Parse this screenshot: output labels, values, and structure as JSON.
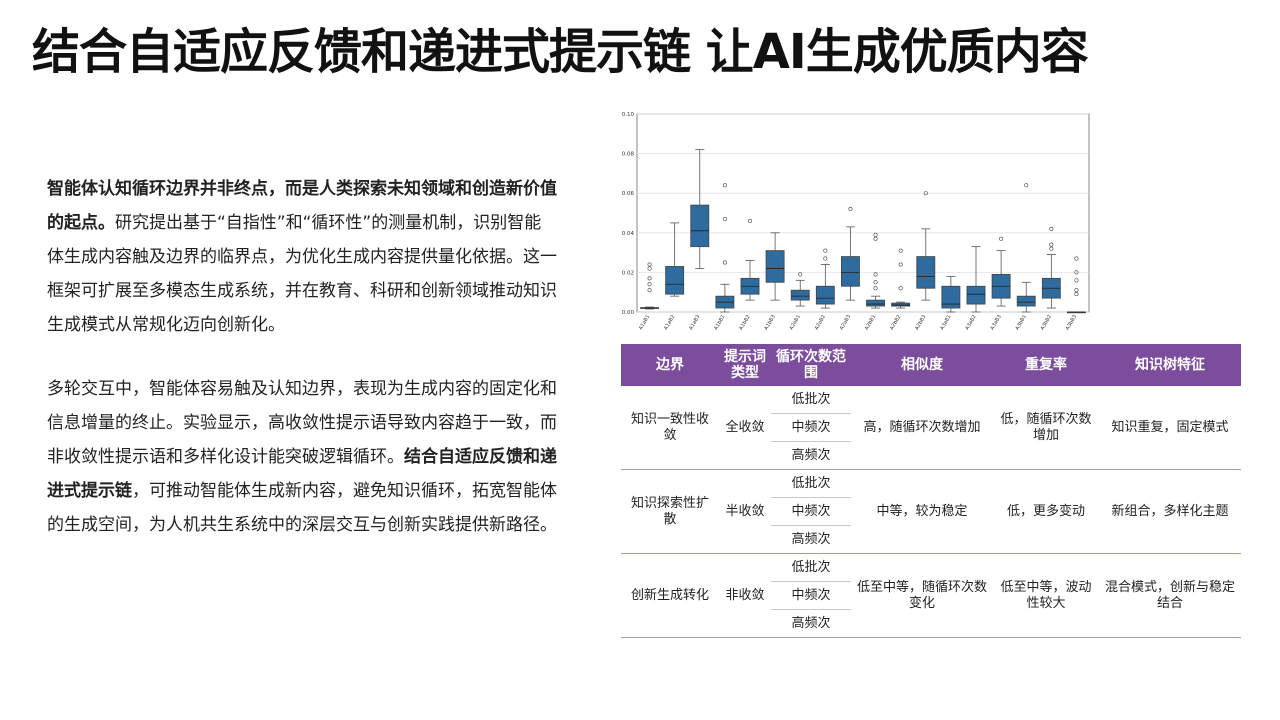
{
  "title": "结合自适应反馈和递进式提示链 让AI生成优质内容",
  "para1": {
    "bold": "智能体认知循环边界并非终点，而是人类探索未知领域和创造新价值的起点。",
    "rest": "研究提出基于“自指性”和“循环性”的测量机制，识别智能体生成内容触及边界的临界点，为优化生成内容提供量化依据。这一框架可扩展至多模态生成系统，并在教育、科研和创新领域推动知识生成模式从常规化迈向创新化。"
  },
  "para2": {
    "text1": "多轮交互中，智能体容易触及认知边界，表现为生成内容的固定化和信息增量的终止。实验显示，高收敛性提示语导致内容趋于一致，而非收敛性提示语和多样化设计能突破逻辑循环。",
    "bold": "结合自适应反馈和递进式提示链",
    "text2": "，可推动智能体生成新内容，避免知识循环，拓宽智能体的生成空间，为人机共生系统中的深层交互与创新实践提供新路径。"
  },
  "table": {
    "headers": [
      "边界",
      "提示词类型",
      "循环次数范围",
      "相似度",
      "重复率",
      "知识树特征"
    ],
    "rows": [
      {
        "boundary": "知识一致性收敛",
        "type": "全收敛",
        "ranges": [
          "低批次",
          "中频次",
          "高频次"
        ],
        "similarity": "高，随循环次数增加",
        "repeat": "低，随循环次数增加",
        "feature": "知识重复，固定模式"
      },
      {
        "boundary": "知识探索性扩散",
        "type": "半收敛",
        "ranges": [
          "低批次",
          "中频次",
          "高频次"
        ],
        "similarity": "中等，较为稳定",
        "repeat": "低，更多变动",
        "feature": "新组合，多样化主题"
      },
      {
        "boundary": "创新生成转化",
        "type": "非收敛",
        "ranges": [
          "低批次",
          "中频次",
          "高频次"
        ],
        "similarity": "低至中等，随循环次数变化",
        "repeat": "低至中等，波动性较大",
        "feature": "混合模式，创新与稳定结合"
      }
    ]
  },
  "chart_data": {
    "type": "box",
    "ylim": [
      0,
      0.1
    ],
    "yticks": [
      "0.00",
      "0.02",
      "0.04",
      "0.06",
      "0.08",
      "0.10"
    ],
    "categories": [
      "A1aB1",
      "A1aB2",
      "A1aB3",
      "A1bB1",
      "A1bB2",
      "A1bB3",
      "A2aB1",
      "A2aB2",
      "A2aB3",
      "A2bB1",
      "A2bB2",
      "A2bB3",
      "A3aB1",
      "A3aB2",
      "A3aB3",
      "A3bB1",
      "A3bB2",
      "A3bB3"
    ],
    "boxes": [
      {
        "min": 0.0015,
        "q1": 0.0018,
        "med": 0.002,
        "q3": 0.0022,
        "max": 0.0025,
        "out": [
          0.011,
          0.014,
          0.017,
          0.022,
          0.024
        ],
        "filled": false
      },
      {
        "min": 0.008,
        "q1": 0.009,
        "med": 0.014,
        "q3": 0.023,
        "max": 0.045,
        "out": [],
        "filled": true
      },
      {
        "min": 0.022,
        "q1": 0.033,
        "med": 0.041,
        "q3": 0.054,
        "max": 0.082,
        "out": [],
        "filled": true
      },
      {
        "min": 0.0,
        "q1": 0.002,
        "med": 0.005,
        "q3": 0.008,
        "max": 0.014,
        "out": [
          0.025,
          0.047,
          0.064
        ],
        "filled": true
      },
      {
        "min": 0.006,
        "q1": 0.009,
        "med": 0.013,
        "q3": 0.017,
        "max": 0.026,
        "out": [
          0.046
        ],
        "filled": true
      },
      {
        "min": 0.006,
        "q1": 0.015,
        "med": 0.022,
        "q3": 0.031,
        "max": 0.04,
        "out": [],
        "filled": true
      },
      {
        "min": 0.003,
        "q1": 0.006,
        "med": 0.008,
        "q3": 0.011,
        "max": 0.016,
        "out": [
          0.019
        ],
        "filled": true
      },
      {
        "min": 0.002,
        "q1": 0.004,
        "med": 0.007,
        "q3": 0.013,
        "max": 0.024,
        "out": [
          0.027,
          0.031
        ],
        "filled": true
      },
      {
        "min": 0.006,
        "q1": 0.013,
        "med": 0.02,
        "q3": 0.028,
        "max": 0.043,
        "out": [
          0.052
        ],
        "filled": true
      },
      {
        "min": 0.002,
        "q1": 0.003,
        "med": 0.004,
        "q3": 0.006,
        "max": 0.008,
        "out": [
          0.012,
          0.015,
          0.019,
          0.037,
          0.039
        ],
        "filled": true
      },
      {
        "min": 0.002,
        "q1": 0.003,
        "med": 0.0035,
        "q3": 0.0045,
        "max": 0.005,
        "out": [
          0.012,
          0.024,
          0.031
        ],
        "filled": true
      },
      {
        "min": 0.006,
        "q1": 0.012,
        "med": 0.018,
        "q3": 0.028,
        "max": 0.042,
        "out": [
          0.06
        ],
        "filled": true
      },
      {
        "min": 0.0,
        "q1": 0.002,
        "med": 0.004,
        "q3": 0.013,
        "max": 0.018,
        "out": [],
        "filled": true
      },
      {
        "min": 0.0,
        "q1": 0.004,
        "med": 0.009,
        "q3": 0.013,
        "max": 0.033,
        "out": [],
        "filled": true
      },
      {
        "min": 0.003,
        "q1": 0.007,
        "med": 0.013,
        "q3": 0.019,
        "max": 0.031,
        "out": [
          0.037
        ],
        "filled": true
      },
      {
        "min": 0.0,
        "q1": 0.003,
        "med": 0.005,
        "q3": 0.008,
        "max": 0.015,
        "out": [
          0.064
        ],
        "filled": true
      },
      {
        "min": 0.002,
        "q1": 0.007,
        "med": 0.012,
        "q3": 0.017,
        "max": 0.029,
        "out": [
          0.032,
          0.034,
          0.042
        ],
        "filled": true
      },
      {
        "min": 0.0,
        "q1": 0.0,
        "med": 0.0,
        "q3": 0.0,
        "max": 0.0,
        "out": [
          0.009,
          0.011,
          0.016,
          0.02,
          0.027
        ],
        "filled": false
      }
    ],
    "box_color": "#2e6b9e"
  }
}
